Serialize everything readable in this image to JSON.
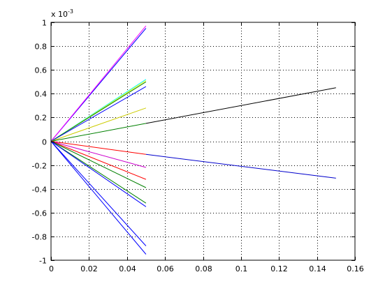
{
  "chart_data": {
    "type": "line",
    "title": "",
    "xlabel": "",
    "ylabel": "",
    "xlim": [
      0,
      0.16
    ],
    "ylim": [
      -0.001,
      0.001
    ],
    "x_ticks": [
      0,
      0.02,
      0.04,
      0.06,
      0.08,
      0.1,
      0.12,
      0.14,
      0.16
    ],
    "x_tick_labels": [
      "0",
      "0.02",
      "0.04",
      "0.06",
      "0.08",
      "0.1",
      "0.12",
      "0.14",
      "0.16"
    ],
    "y_ticks": [
      -0.001,
      -0.0008,
      -0.0006,
      -0.0004,
      -0.0002,
      0,
      0.0002,
      0.0004,
      0.0006,
      0.0008,
      0.001
    ],
    "y_tick_labels": [
      "-1",
      "-0.8",
      "-0.6",
      "-0.4",
      "-0.2",
      "0",
      "0.2",
      "0.4",
      "0.6",
      "0.8",
      "1"
    ],
    "y_exponent_label": "x 10",
    "y_exponent_power": "-3",
    "grid": true,
    "legend": false,
    "series": [
      {
        "color": "#0000ff",
        "points": [
          [
            0,
            0
          ],
          [
            0.05,
            0.00095
          ]
        ]
      },
      {
        "color": "#ff00ff",
        "points": [
          [
            0,
            0
          ],
          [
            0.05,
            0.00097
          ]
        ]
      },
      {
        "color": "#00ffff",
        "points": [
          [
            0,
            0
          ],
          [
            0.05,
            0.00052
          ]
        ]
      },
      {
        "color": "#ffff00",
        "points": [
          [
            0,
            0
          ],
          [
            0.05,
            0.00051
          ]
        ]
      },
      {
        "color": "#008000",
        "points": [
          [
            0,
            0
          ],
          [
            0.05,
            0.0005
          ]
        ]
      },
      {
        "color": "#0000ff",
        "points": [
          [
            0,
            0
          ],
          [
            0.05,
            0.00046
          ]
        ]
      },
      {
        "color": "#cccc00",
        "points": [
          [
            0,
            0
          ],
          [
            0.05,
            0.00028
          ]
        ]
      },
      {
        "color": "#008000",
        "points": [
          [
            0,
            0
          ],
          [
            0.05,
            0.00015
          ]
        ]
      },
      {
        "color": "#000000",
        "points": [
          [
            0.05,
            0.00015
          ],
          [
            0.15,
            0.00045
          ]
        ]
      },
      {
        "color": "#ff0000",
        "points": [
          [
            0,
            0
          ],
          [
            0.05,
            -0.00011
          ]
        ]
      },
      {
        "color": "#0000cc",
        "points": [
          [
            0.05,
            -0.00011
          ],
          [
            0.15,
            -0.00031
          ]
        ]
      },
      {
        "color": "#cc00cc",
        "points": [
          [
            0,
            0
          ],
          [
            0.05,
            -0.00022
          ]
        ]
      },
      {
        "color": "#ff0000",
        "points": [
          [
            0,
            0
          ],
          [
            0.05,
            -0.00032
          ]
        ]
      },
      {
        "color": "#008000",
        "points": [
          [
            0,
            0
          ],
          [
            0.05,
            -0.00039
          ]
        ]
      },
      {
        "color": "#008000",
        "points": [
          [
            0,
            0
          ],
          [
            0.05,
            -0.00052
          ]
        ]
      },
      {
        "color": "#0000ff",
        "points": [
          [
            0,
            0
          ],
          [
            0.05,
            -0.00055
          ]
        ]
      },
      {
        "color": "#0000ff",
        "points": [
          [
            0,
            0
          ],
          [
            0.05,
            -0.00088
          ]
        ]
      },
      {
        "color": "#0000ff",
        "points": [
          [
            0,
            0
          ],
          [
            0.05,
            -0.00095
          ]
        ]
      }
    ]
  }
}
